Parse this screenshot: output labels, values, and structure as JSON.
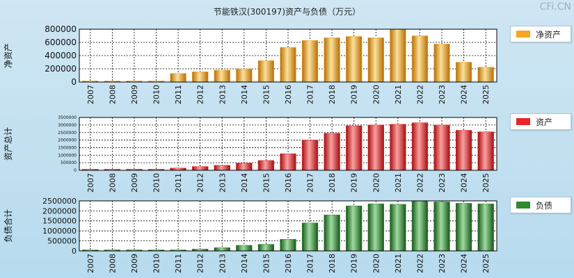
{
  "title": "节能铁汉(300197)资产与负债（万元）",
  "watermark": "CFi.CN",
  "chart_data": [
    {
      "type": "bar",
      "name": "净资产",
      "ylabel": "净资产",
      "legend": "净资产",
      "color": "#f5a623",
      "categories": [
        "2007",
        "2008",
        "2009",
        "2010",
        "2011",
        "2012",
        "2013",
        "2014",
        "2015",
        "2016",
        "2017",
        "2018",
        "2019",
        "2020",
        "2021",
        "2022",
        "2023",
        "2024",
        "2025"
      ],
      "values": [
        5000,
        8000,
        12000,
        15000,
        130000,
        155000,
        180000,
        200000,
        325000,
        525000,
        630000,
        670000,
        690000,
        670000,
        800000,
        700000,
        575000,
        300000,
        225000
      ],
      "ylim": [
        0,
        800000
      ],
      "yticks": [
        0,
        200000,
        400000,
        600000,
        800000
      ]
    },
    {
      "type": "bar",
      "name": "资产",
      "ylabel": "资产总计",
      "legend": "资产",
      "color": "#e8262a",
      "categories": [
        "2007",
        "2008",
        "2009",
        "2010",
        "2011",
        "2012",
        "2013",
        "2014",
        "2015",
        "2016",
        "2017",
        "2018",
        "2019",
        "2020",
        "2021",
        "2022",
        "2023",
        "2024",
        "2025"
      ],
      "values": [
        40000,
        50000,
        60000,
        70000,
        150000,
        250000,
        330000,
        480000,
        650000,
        1100000,
        2000000,
        2450000,
        2950000,
        3000000,
        3050000,
        3150000,
        3000000,
        2650000,
        2550000
      ],
      "ylim": [
        0,
        3500000
      ],
      "yticks": [
        0,
        500000,
        1000000,
        1500000,
        2000000,
        2500000,
        3000000,
        3500000
      ]
    },
    {
      "type": "bar",
      "name": "负债",
      "ylabel": "负债合计",
      "legend": "负债",
      "color": "#2e8b2e",
      "categories": [
        "2007",
        "2008",
        "2009",
        "2010",
        "2011",
        "2012",
        "2013",
        "2014",
        "2015",
        "2016",
        "2017",
        "2018",
        "2019",
        "2020",
        "2021",
        "2022",
        "2023",
        "2024",
        "2025"
      ],
      "values": [
        20000,
        25000,
        30000,
        35000,
        40000,
        90000,
        160000,
        280000,
        330000,
        580000,
        1400000,
        1800000,
        2250000,
        2350000,
        2330000,
        2500000,
        2450000,
        2380000,
        2350000
      ],
      "ylim": [
        0,
        2500000
      ],
      "yticks": [
        0,
        500000,
        1000000,
        1500000,
        2000000,
        2500000
      ]
    }
  ]
}
